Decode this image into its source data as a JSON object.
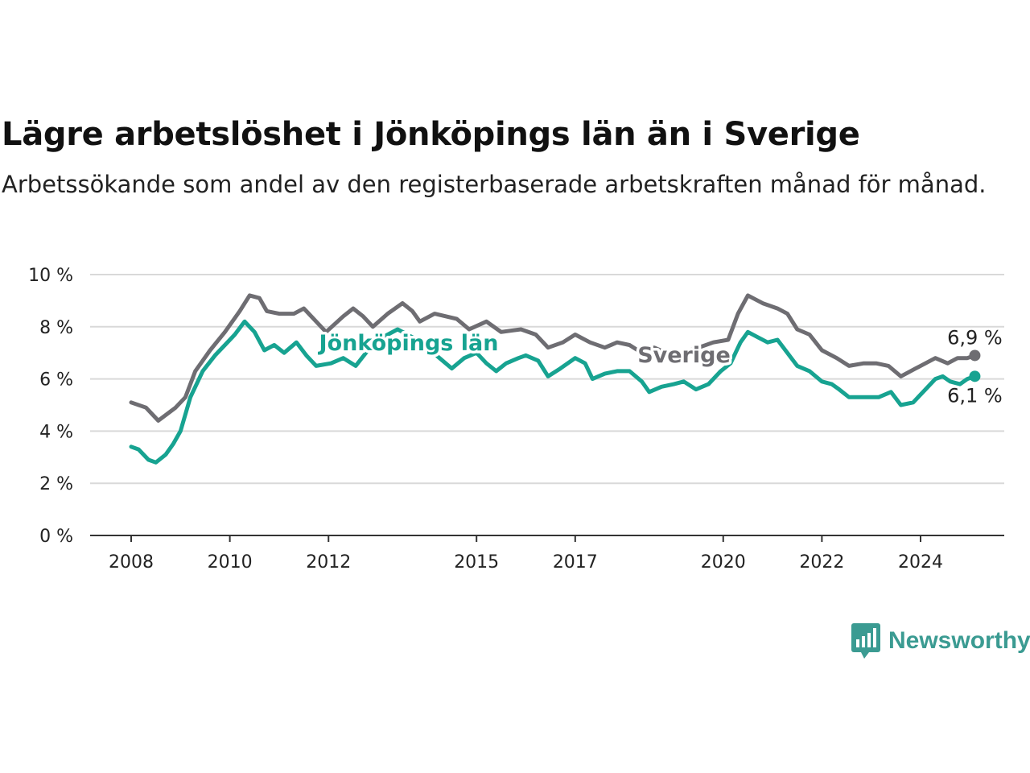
{
  "title": "Lägre arbetslöshet i Jönköpings län än i Sverige",
  "subtitle": "Arbetssökande som andel av den registerbaserade arbetskraften månad för månad.",
  "brand": {
    "name": "Newsworthy",
    "icon": "bar-chart-speech-bubble-icon",
    "color": "#3b9b92"
  },
  "chart_data": {
    "type": "line",
    "title": "Lägre arbetslöshet i Jönköpings län än i Sverige",
    "ylim": [
      0,
      10
    ],
    "yticks": [
      0,
      2,
      4,
      6,
      8,
      10
    ],
    "ytick_labels": [
      "0 %",
      "2 %",
      "4 %",
      "6 %",
      "8 %",
      "10 %"
    ],
    "xlim": [
      2008,
      2025.5
    ],
    "xticks": [
      2008,
      2010,
      2012,
      2015,
      2017,
      2020,
      2022,
      2024
    ],
    "xtick_labels": [
      "2008",
      "2010",
      "2012",
      "2015",
      "2017",
      "2020",
      "2022",
      "2024"
    ],
    "grid": true,
    "series": [
      {
        "name": "Sverige",
        "color": "#6e6d72",
        "end_label": "6,9 %",
        "points": [
          [
            2008.0,
            5.1
          ],
          [
            2008.3,
            4.9
          ],
          [
            2008.55,
            4.4
          ],
          [
            2008.9,
            4.9
          ],
          [
            2009.1,
            5.3
          ],
          [
            2009.3,
            6.3
          ],
          [
            2009.6,
            7.1
          ],
          [
            2009.9,
            7.8
          ],
          [
            2010.2,
            8.6
          ],
          [
            2010.4,
            9.2
          ],
          [
            2010.6,
            9.1
          ],
          [
            2010.75,
            8.6
          ],
          [
            2011.0,
            8.5
          ],
          [
            2011.3,
            8.5
          ],
          [
            2011.5,
            8.7
          ],
          [
            2011.75,
            8.2
          ],
          [
            2011.95,
            7.8
          ],
          [
            2012.3,
            8.4
          ],
          [
            2012.5,
            8.7
          ],
          [
            2012.7,
            8.4
          ],
          [
            2012.9,
            8.0
          ],
          [
            2013.2,
            8.5
          ],
          [
            2013.5,
            8.9
          ],
          [
            2013.7,
            8.6
          ],
          [
            2013.85,
            8.2
          ],
          [
            2014.15,
            8.5
          ],
          [
            2014.6,
            8.3
          ],
          [
            2014.85,
            7.9
          ],
          [
            2015.2,
            8.2
          ],
          [
            2015.5,
            7.8
          ],
          [
            2015.9,
            7.9
          ],
          [
            2016.2,
            7.7
          ],
          [
            2016.45,
            7.2
          ],
          [
            2016.75,
            7.4
          ],
          [
            2017.0,
            7.7
          ],
          [
            2017.3,
            7.4
          ],
          [
            2017.6,
            7.2
          ],
          [
            2017.85,
            7.4
          ],
          [
            2018.1,
            7.3
          ],
          [
            2018.35,
            7.0
          ],
          [
            2018.6,
            7.2
          ],
          [
            2018.85,
            7.0
          ],
          [
            2019.15,
            7.0
          ],
          [
            2019.5,
            7.2
          ],
          [
            2019.8,
            7.4
          ],
          [
            2020.1,
            7.5
          ],
          [
            2020.3,
            8.5
          ],
          [
            2020.5,
            9.2
          ],
          [
            2020.8,
            8.9
          ],
          [
            2021.1,
            8.7
          ],
          [
            2021.3,
            8.5
          ],
          [
            2021.5,
            7.9
          ],
          [
            2021.75,
            7.7
          ],
          [
            2022.0,
            7.1
          ],
          [
            2022.3,
            6.8
          ],
          [
            2022.55,
            6.5
          ],
          [
            2022.85,
            6.6
          ],
          [
            2023.1,
            6.6
          ],
          [
            2023.35,
            6.5
          ],
          [
            2023.6,
            6.1
          ],
          [
            2023.9,
            6.4
          ],
          [
            2024.1,
            6.6
          ],
          [
            2024.3,
            6.8
          ],
          [
            2024.55,
            6.6
          ],
          [
            2024.75,
            6.8
          ],
          [
            2024.95,
            6.8
          ],
          [
            2025.1,
            6.9
          ]
        ]
      },
      {
        "name": "Jönköpings län",
        "color": "#17a391",
        "end_label": "6,1 %",
        "points": [
          [
            2008.0,
            3.4
          ],
          [
            2008.15,
            3.3
          ],
          [
            2008.35,
            2.9
          ],
          [
            2008.5,
            2.8
          ],
          [
            2008.7,
            3.1
          ],
          [
            2008.85,
            3.5
          ],
          [
            2009.0,
            4.0
          ],
          [
            2009.2,
            5.3
          ],
          [
            2009.45,
            6.3
          ],
          [
            2009.7,
            6.9
          ],
          [
            2009.9,
            7.3
          ],
          [
            2010.1,
            7.7
          ],
          [
            2010.3,
            8.2
          ],
          [
            2010.5,
            7.8
          ],
          [
            2010.7,
            7.1
          ],
          [
            2010.9,
            7.3
          ],
          [
            2011.1,
            7.0
          ],
          [
            2011.35,
            7.4
          ],
          [
            2011.55,
            6.9
          ],
          [
            2011.75,
            6.5
          ],
          [
            2012.05,
            6.6
          ],
          [
            2012.3,
            6.8
          ],
          [
            2012.55,
            6.5
          ],
          [
            2012.8,
            7.1
          ],
          [
            2013.1,
            7.6
          ],
          [
            2013.4,
            7.9
          ],
          [
            2013.7,
            7.6
          ],
          [
            2014.0,
            7.2
          ],
          [
            2014.25,
            6.8
          ],
          [
            2014.5,
            6.4
          ],
          [
            2014.75,
            6.8
          ],
          [
            2015.0,
            7.0
          ],
          [
            2015.2,
            6.6
          ],
          [
            2015.4,
            6.3
          ],
          [
            2015.6,
            6.6
          ],
          [
            2015.85,
            6.8
          ],
          [
            2016.0,
            6.9
          ],
          [
            2016.25,
            6.7
          ],
          [
            2016.45,
            6.1
          ],
          [
            2016.7,
            6.4
          ],
          [
            2017.0,
            6.8
          ],
          [
            2017.2,
            6.6
          ],
          [
            2017.35,
            6.0
          ],
          [
            2017.6,
            6.2
          ],
          [
            2017.85,
            6.3
          ],
          [
            2018.1,
            6.3
          ],
          [
            2018.35,
            5.9
          ],
          [
            2018.5,
            5.5
          ],
          [
            2018.75,
            5.7
          ],
          [
            2019.0,
            5.8
          ],
          [
            2019.2,
            5.9
          ],
          [
            2019.45,
            5.6
          ],
          [
            2019.7,
            5.8
          ],
          [
            2019.95,
            6.3
          ],
          [
            2020.15,
            6.6
          ],
          [
            2020.35,
            7.4
          ],
          [
            2020.5,
            7.8
          ],
          [
            2020.7,
            7.6
          ],
          [
            2020.9,
            7.4
          ],
          [
            2021.1,
            7.5
          ],
          [
            2021.3,
            7.0
          ],
          [
            2021.5,
            6.5
          ],
          [
            2021.75,
            6.3
          ],
          [
            2022.0,
            5.9
          ],
          [
            2022.2,
            5.8
          ],
          [
            2022.35,
            5.6
          ],
          [
            2022.55,
            5.3
          ],
          [
            2022.85,
            5.3
          ],
          [
            2023.15,
            5.3
          ],
          [
            2023.4,
            5.5
          ],
          [
            2023.6,
            5.0
          ],
          [
            2023.85,
            5.1
          ],
          [
            2024.1,
            5.6
          ],
          [
            2024.3,
            6.0
          ],
          [
            2024.45,
            6.1
          ],
          [
            2024.6,
            5.9
          ],
          [
            2024.8,
            5.8
          ],
          [
            2024.95,
            6.0
          ],
          [
            2025.1,
            6.1
          ]
        ]
      }
    ]
  }
}
